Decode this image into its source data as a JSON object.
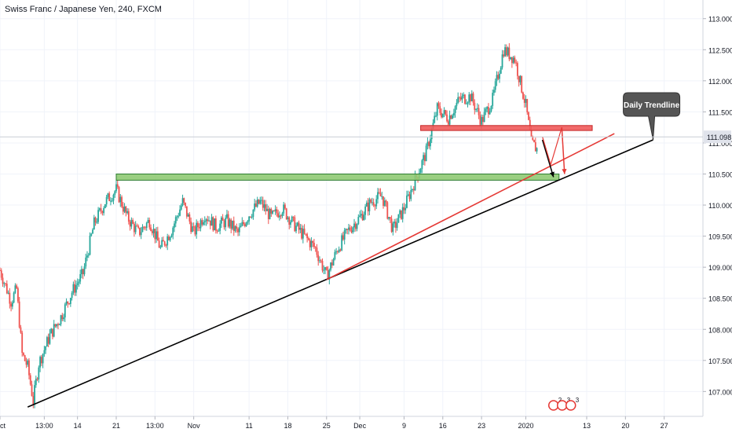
{
  "chart_data": {
    "type": "candlestick",
    "title": "Swiss Franc / Japanese Yen, 240, FXCM",
    "price_axis": {
      "ticks": [
        "113.000",
        "112.500",
        "112.000",
        "111.500",
        "111.000",
        "110.500",
        "110.000",
        "109.500",
        "109.000",
        "108.500",
        "108.000",
        "107.500",
        "107.000"
      ],
      "range": [
        106.6,
        113.3
      ],
      "current_price": "111.098"
    },
    "time_axis": {
      "ticks": [
        {
          "label": "Oct",
          "day": 0
        },
        {
          "label": "13:00",
          "day": 8
        },
        {
          "label": "14",
          "day": 14
        },
        {
          "label": "21",
          "day": 21
        },
        {
          "label": "13:00",
          "day": 28
        },
        {
          "label": "Nov",
          "day": 35
        },
        {
          "label": "11",
          "day": 45
        },
        {
          "label": "18",
          "day": 52
        },
        {
          "label": "25",
          "day": 59
        },
        {
          "label": "Dec",
          "day": 65
        },
        {
          "label": "9",
          "day": 73
        },
        {
          "label": "16",
          "day": 80
        },
        {
          "label": "23",
          "day": 87
        },
        {
          "label": "2020",
          "day": 95
        },
        {
          "label": "13",
          "day": 106
        },
        {
          "label": "20",
          "day": 113
        },
        {
          "label": "27",
          "day": 120
        }
      ],
      "range": [
        0,
        127
      ]
    },
    "path": [
      {
        "day": 0,
        "price": 108.95
      },
      {
        "day": 2,
        "price": 108.45
      },
      {
        "day": 3,
        "price": 108.65
      },
      {
        "day": 4,
        "price": 107.6
      },
      {
        "day": 5,
        "price": 107.4
      },
      {
        "day": 6,
        "price": 106.85
      },
      {
        "day": 7,
        "price": 107.45
      },
      {
        "day": 9,
        "price": 107.9
      },
      {
        "day": 11,
        "price": 108.2
      },
      {
        "day": 13,
        "price": 108.6
      },
      {
        "day": 15,
        "price": 108.9
      },
      {
        "day": 17,
        "price": 109.7
      },
      {
        "day": 19,
        "price": 110.05
      },
      {
        "day": 21,
        "price": 110.25
      },
      {
        "day": 23,
        "price": 109.8
      },
      {
        "day": 25,
        "price": 109.55
      },
      {
        "day": 27,
        "price": 109.75
      },
      {
        "day": 29,
        "price": 109.3
      },
      {
        "day": 31,
        "price": 109.6
      },
      {
        "day": 33,
        "price": 110.05
      },
      {
        "day": 35,
        "price": 109.55
      },
      {
        "day": 37,
        "price": 109.85
      },
      {
        "day": 39,
        "price": 109.65
      },
      {
        "day": 41,
        "price": 109.75
      },
      {
        "day": 43,
        "price": 109.55
      },
      {
        "day": 45,
        "price": 109.85
      },
      {
        "day": 47,
        "price": 110.05
      },
      {
        "day": 49,
        "price": 109.8
      },
      {
        "day": 51,
        "price": 109.95
      },
      {
        "day": 53,
        "price": 109.7
      },
      {
        "day": 55,
        "price": 109.5
      },
      {
        "day": 57,
        "price": 109.3
      },
      {
        "day": 59,
        "price": 108.85
      },
      {
        "day": 61,
        "price": 109.3
      },
      {
        "day": 63,
        "price": 109.6
      },
      {
        "day": 65,
        "price": 109.8
      },
      {
        "day": 67,
        "price": 110.05
      },
      {
        "day": 69,
        "price": 110.15
      },
      {
        "day": 71,
        "price": 109.6
      },
      {
        "day": 73,
        "price": 109.95
      },
      {
        "day": 75,
        "price": 110.4
      },
      {
        "day": 77,
        "price": 110.85
      },
      {
        "day": 79,
        "price": 111.55
      },
      {
        "day": 81,
        "price": 111.4
      },
      {
        "day": 83,
        "price": 111.7
      },
      {
        "day": 85,
        "price": 111.75
      },
      {
        "day": 87,
        "price": 111.35
      },
      {
        "day": 89,
        "price": 111.7
      },
      {
        "day": 91,
        "price": 112.5
      },
      {
        "day": 93,
        "price": 112.35
      },
      {
        "day": 95,
        "price": 111.6
      },
      {
        "day": 96,
        "price": 111.0
      },
      {
        "day": 97,
        "price": 110.9
      }
    ],
    "zones": [
      {
        "kind": "resistance",
        "color": "#f05a5a",
        "border": "#c62828",
        "day_start": 76,
        "day_end": 107,
        "price_low": 111.2,
        "price_high": 111.28
      },
      {
        "kind": "support",
        "color": "#8fca73",
        "border": "#2e7d32",
        "day_start": 21,
        "day_end": 101,
        "price_low": 110.4,
        "price_high": 110.5
      }
    ],
    "trendlines": [
      {
        "color": "#000000",
        "from": {
          "day": 5,
          "price": 106.75
        },
        "to": {
          "day": 118,
          "price": 111.05
        }
      },
      {
        "color": "#e53935",
        "from": {
          "day": 59,
          "price": 108.8
        },
        "to": {
          "day": 111,
          "price": 111.15
        }
      }
    ],
    "projection_arrows": [
      {
        "color": "#000000",
        "from": {
          "day": 98,
          "price": 111.05
        },
        "to": {
          "day": 100,
          "price": 110.45
        }
      }
    ],
    "projection_zigzag": {
      "color": "#e53935",
      "points": [
        {
          "day": 98,
          "price": 111.1
        },
        {
          "day": 99.5,
          "price": 110.65
        },
        {
          "day": 101.5,
          "price": 111.25
        },
        {
          "day": 102,
          "price": 110.5
        }
      ]
    },
    "callout": {
      "label": "Daily Trendline",
      "bg": "#555555",
      "text_color": "#ffffff",
      "anchor": {
        "day": 118,
        "price": 111.05
      }
    },
    "colors": {
      "up": "#26a69a",
      "down": "#ef5350",
      "grid": "#f0f3fa",
      "axis_text": "#131722",
      "price_label_bg": "#e0e3eb"
    },
    "events_badge": {
      "labels": [
        "2",
        "3",
        "3"
      ],
      "color": "#e53935",
      "day": 100
    }
  }
}
